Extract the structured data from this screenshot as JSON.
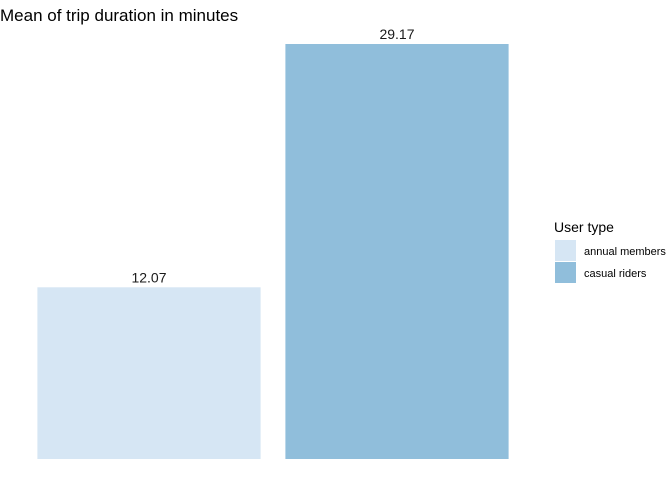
{
  "chart_data": {
    "type": "bar",
    "title": "Mean of trip duration in minutes",
    "categories": [
      "annual members",
      "casual riders"
    ],
    "values": [
      12.07,
      29.17
    ],
    "data_labels": [
      "12.07",
      "29.17"
    ],
    "colors": [
      "#d6e6f4",
      "#90bedb"
    ],
    "xlabel": "",
    "ylabel": "",
    "ylim": [
      0,
      29.17
    ],
    "grid": false,
    "axes_visible": false,
    "legend": {
      "title": "User type",
      "position": "right",
      "entries": [
        "annual members",
        "casual riders"
      ]
    }
  }
}
